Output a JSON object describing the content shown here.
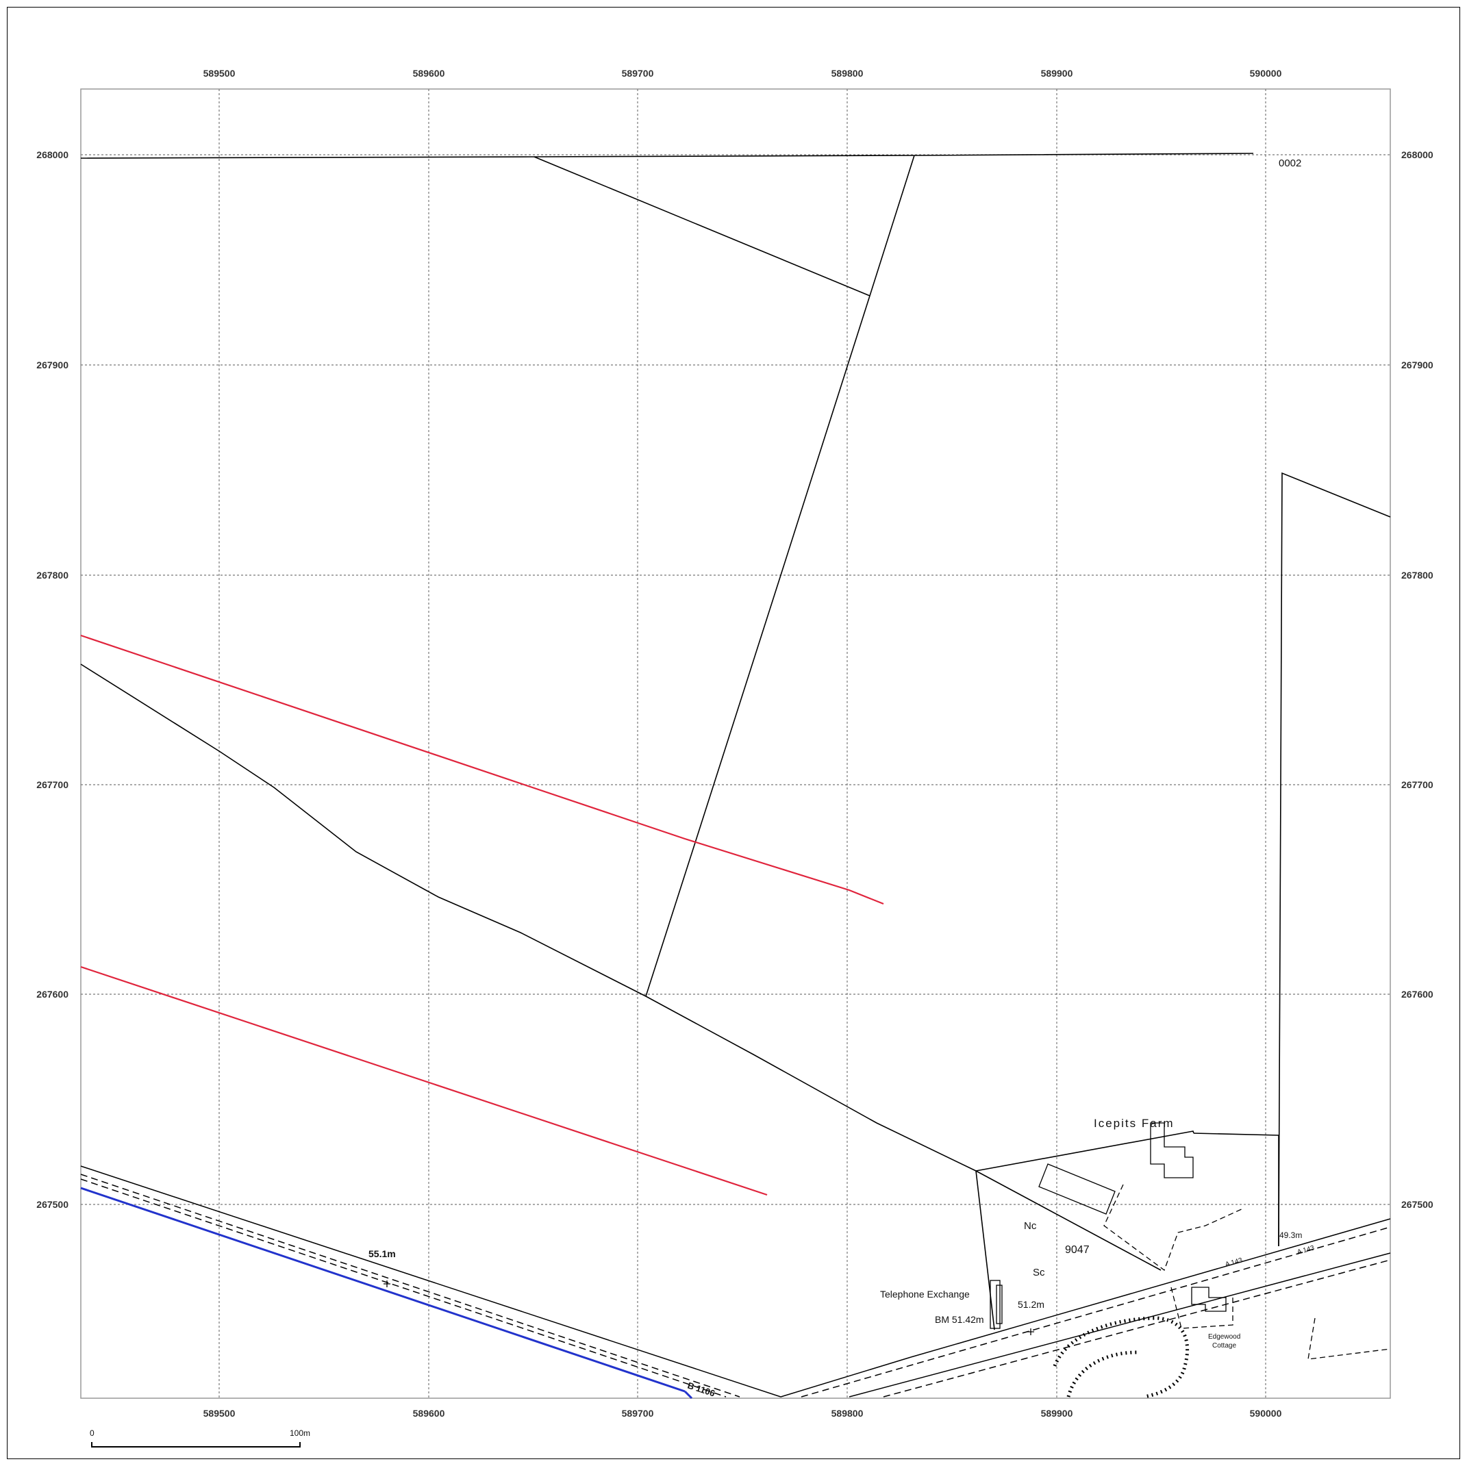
{
  "grid": {
    "eastings": [
      "589500",
      "589600",
      "589700",
      "589800",
      "589900",
      "590000"
    ],
    "northings": [
      "268000",
      "267900",
      "267800",
      "267700",
      "267600",
      "267500"
    ]
  },
  "labels": {
    "field_no_top": "0002",
    "farm": "Icepits Farm",
    "parcel_no": "9047",
    "nc": "Nc",
    "sc": "Sc",
    "telephone_exchange": "Telephone Exchange",
    "bench_mark": "BM 51.42m",
    "spot_height_road": "51.2m",
    "spot_height_south": "55.1m",
    "spot_height_east": "49.3m",
    "road_b": "B 1106",
    "road_a_1": "A 143",
    "road_a_2": "A 143",
    "cottage_1": "Edgewood",
    "cottage_2": "Cottage"
  },
  "scale_bar": {
    "start": "0",
    "end": "100m"
  },
  "colors": {
    "boundary": "#e0243c",
    "road_blue": "#2233cc",
    "line": "#000000",
    "grid": "#777777"
  }
}
